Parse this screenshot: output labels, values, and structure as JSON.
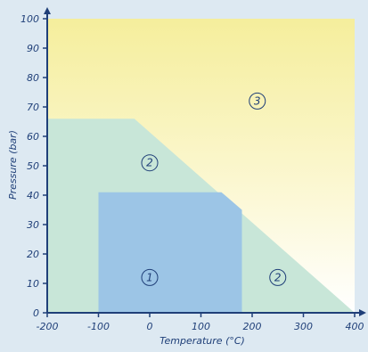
{
  "chart_data": {
    "type": "area",
    "xlabel": "Temperature (°C)",
    "ylabel": "Pressure (bar)",
    "xlim": [
      -200,
      400
    ],
    "ylim": [
      0,
      100
    ],
    "x_ticks": [
      -200,
      -100,
      0,
      100,
      200,
      300,
      400
    ],
    "y_ticks": [
      0,
      10,
      20,
      30,
      40,
      50,
      60,
      70,
      80,
      90,
      100
    ],
    "regions": [
      {
        "label": "3",
        "color": "#f5ee9c",
        "polygon": [
          [
            -200,
            0
          ],
          [
            400,
            0
          ],
          [
            400,
            100
          ],
          [
            -200,
            100
          ]
        ]
      },
      {
        "label": "2",
        "color": "#c8e6d8",
        "polygon": [
          [
            -200,
            0
          ],
          [
            400,
            0
          ],
          [
            -30,
            66
          ],
          [
            -200,
            66
          ]
        ]
      },
      {
        "label": "1",
        "color": "#9cc5e6",
        "polygon": [
          [
            -100,
            0
          ],
          [
            180,
            0
          ],
          [
            180,
            35
          ],
          [
            140,
            41
          ],
          [
            -100,
            41
          ]
        ]
      }
    ],
    "zone_labels": [
      {
        "text": "3",
        "x": 210,
        "y": 72
      },
      {
        "text": "2",
        "x": 0,
        "y": 51
      },
      {
        "text": "1",
        "x": 0,
        "y": 12
      },
      {
        "text": "2",
        "x": 250,
        "y": 12
      }
    ],
    "colors": {
      "background": "#dde9f2",
      "plot_background": "#fdfbef",
      "axis": "#1f3f78",
      "gradient_top": "#f5ee9c",
      "gradient_bottom": "#ffffff"
    }
  }
}
